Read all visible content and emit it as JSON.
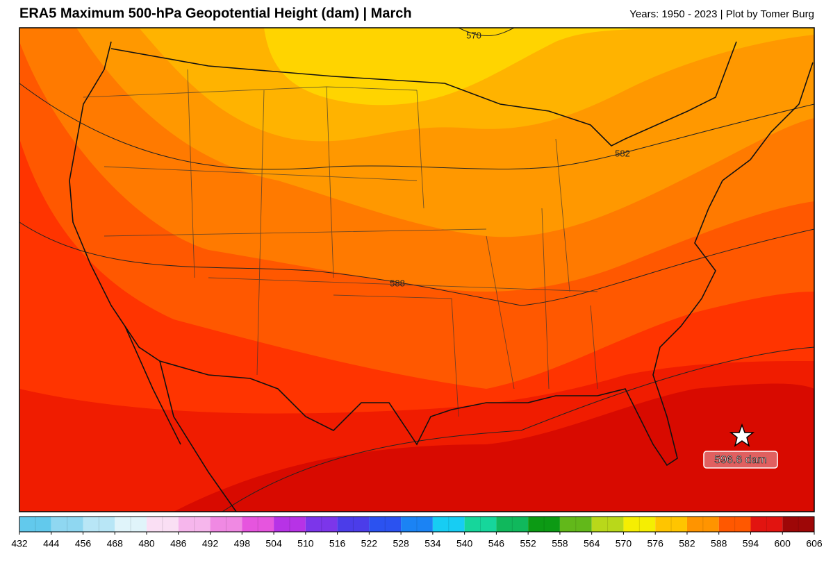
{
  "header": {
    "title": "ERA5 Maximum 500-hPa Geopotential Height (dam) | March",
    "credit": "Years: 1950 - 2023 | Plot by Tomer Burg"
  },
  "map": {
    "contour_labels": [
      "570",
      "582",
      "588"
    ],
    "max_label": "596.6 dam"
  },
  "colorbar": {
    "ticks": [
      432,
      444,
      456,
      468,
      480,
      486,
      492,
      498,
      504,
      510,
      516,
      522,
      528,
      534,
      540,
      546,
      552,
      558,
      564,
      570,
      576,
      582,
      588,
      594,
      600,
      606
    ],
    "colors": [
      "#62c9ec",
      "#8fd7f1",
      "#b8e6f6",
      "#e0f4fa",
      "#fadff4",
      "#f6b6ec",
      "#f089e3",
      "#e655de",
      "#b733e6",
      "#7c36ea",
      "#4b3de9",
      "#2b52f0",
      "#1b83f4",
      "#17cdf3",
      "#16d69b",
      "#10b85c",
      "#0c9a14",
      "#62b81a",
      "#b9d81a",
      "#f5ee02",
      "#ffc500",
      "#ff9400",
      "#ff5800",
      "#e21410",
      "#9e0707"
    ]
  }
}
